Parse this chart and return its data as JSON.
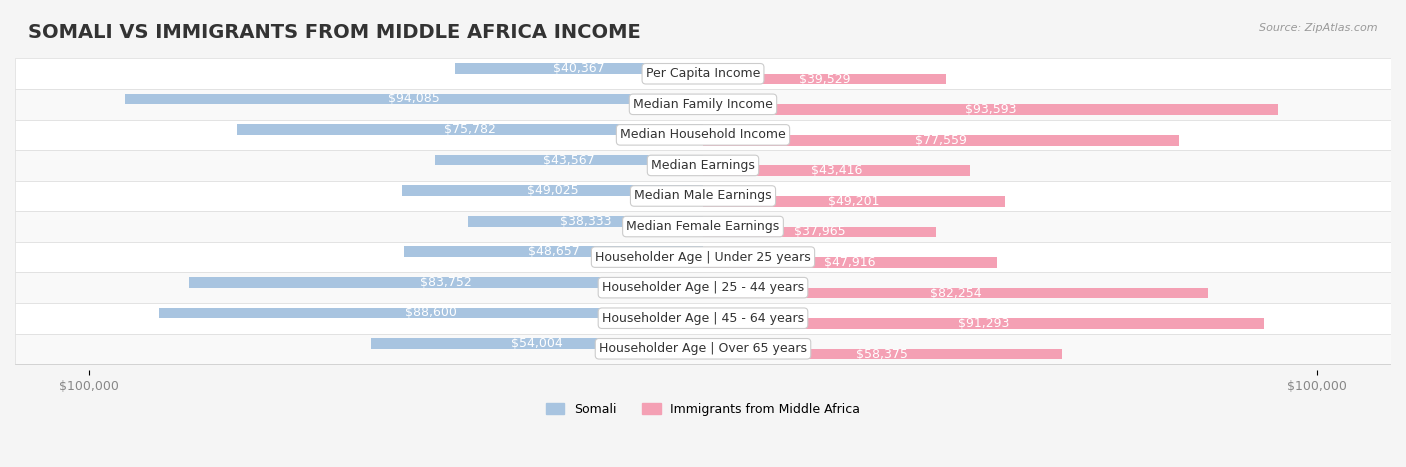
{
  "title": "SOMALI VS IMMIGRANTS FROM MIDDLE AFRICA INCOME",
  "source": "Source: ZipAtlas.com",
  "categories": [
    "Per Capita Income",
    "Median Family Income",
    "Median Household Income",
    "Median Earnings",
    "Median Male Earnings",
    "Median Female Earnings",
    "Householder Age | Under 25 years",
    "Householder Age | 25 - 44 years",
    "Householder Age | 45 - 64 years",
    "Householder Age | Over 65 years"
  ],
  "somali_values": [
    40367,
    94085,
    75782,
    43567,
    49025,
    38333,
    48657,
    83752,
    88600,
    54004
  ],
  "immigrant_values": [
    39529,
    93593,
    77559,
    43416,
    49201,
    37965,
    47916,
    82254,
    91293,
    58375
  ],
  "somali_labels": [
    "$40,367",
    "$94,085",
    "$75,782",
    "$43,567",
    "$49,025",
    "$38,333",
    "$48,657",
    "$83,752",
    "$88,600",
    "$54,004"
  ],
  "immigrant_labels": [
    "$39,529",
    "$93,593",
    "$77,559",
    "$43,416",
    "$49,201",
    "$37,965",
    "$47,916",
    "$82,254",
    "$91,293",
    "$58,375"
  ],
  "somali_color": "#a8c4e0",
  "immigrant_color": "#f4a0b4",
  "somali_color_dark": "#7aaac8",
  "immigrant_color_dark": "#e87898",
  "label_color_inside": "#ffffff",
  "label_color_outside": "#888888",
  "max_value": 100000,
  "background_color": "#f5f5f5",
  "row_bg_light": "#f9f9f9",
  "row_bg_white": "#ffffff",
  "legend_somali": "Somali",
  "legend_immigrant": "Immigrants from Middle Africa",
  "bar_height": 0.35,
  "title_fontsize": 14,
  "label_fontsize": 9,
  "category_fontsize": 9,
  "axis_fontsize": 9
}
